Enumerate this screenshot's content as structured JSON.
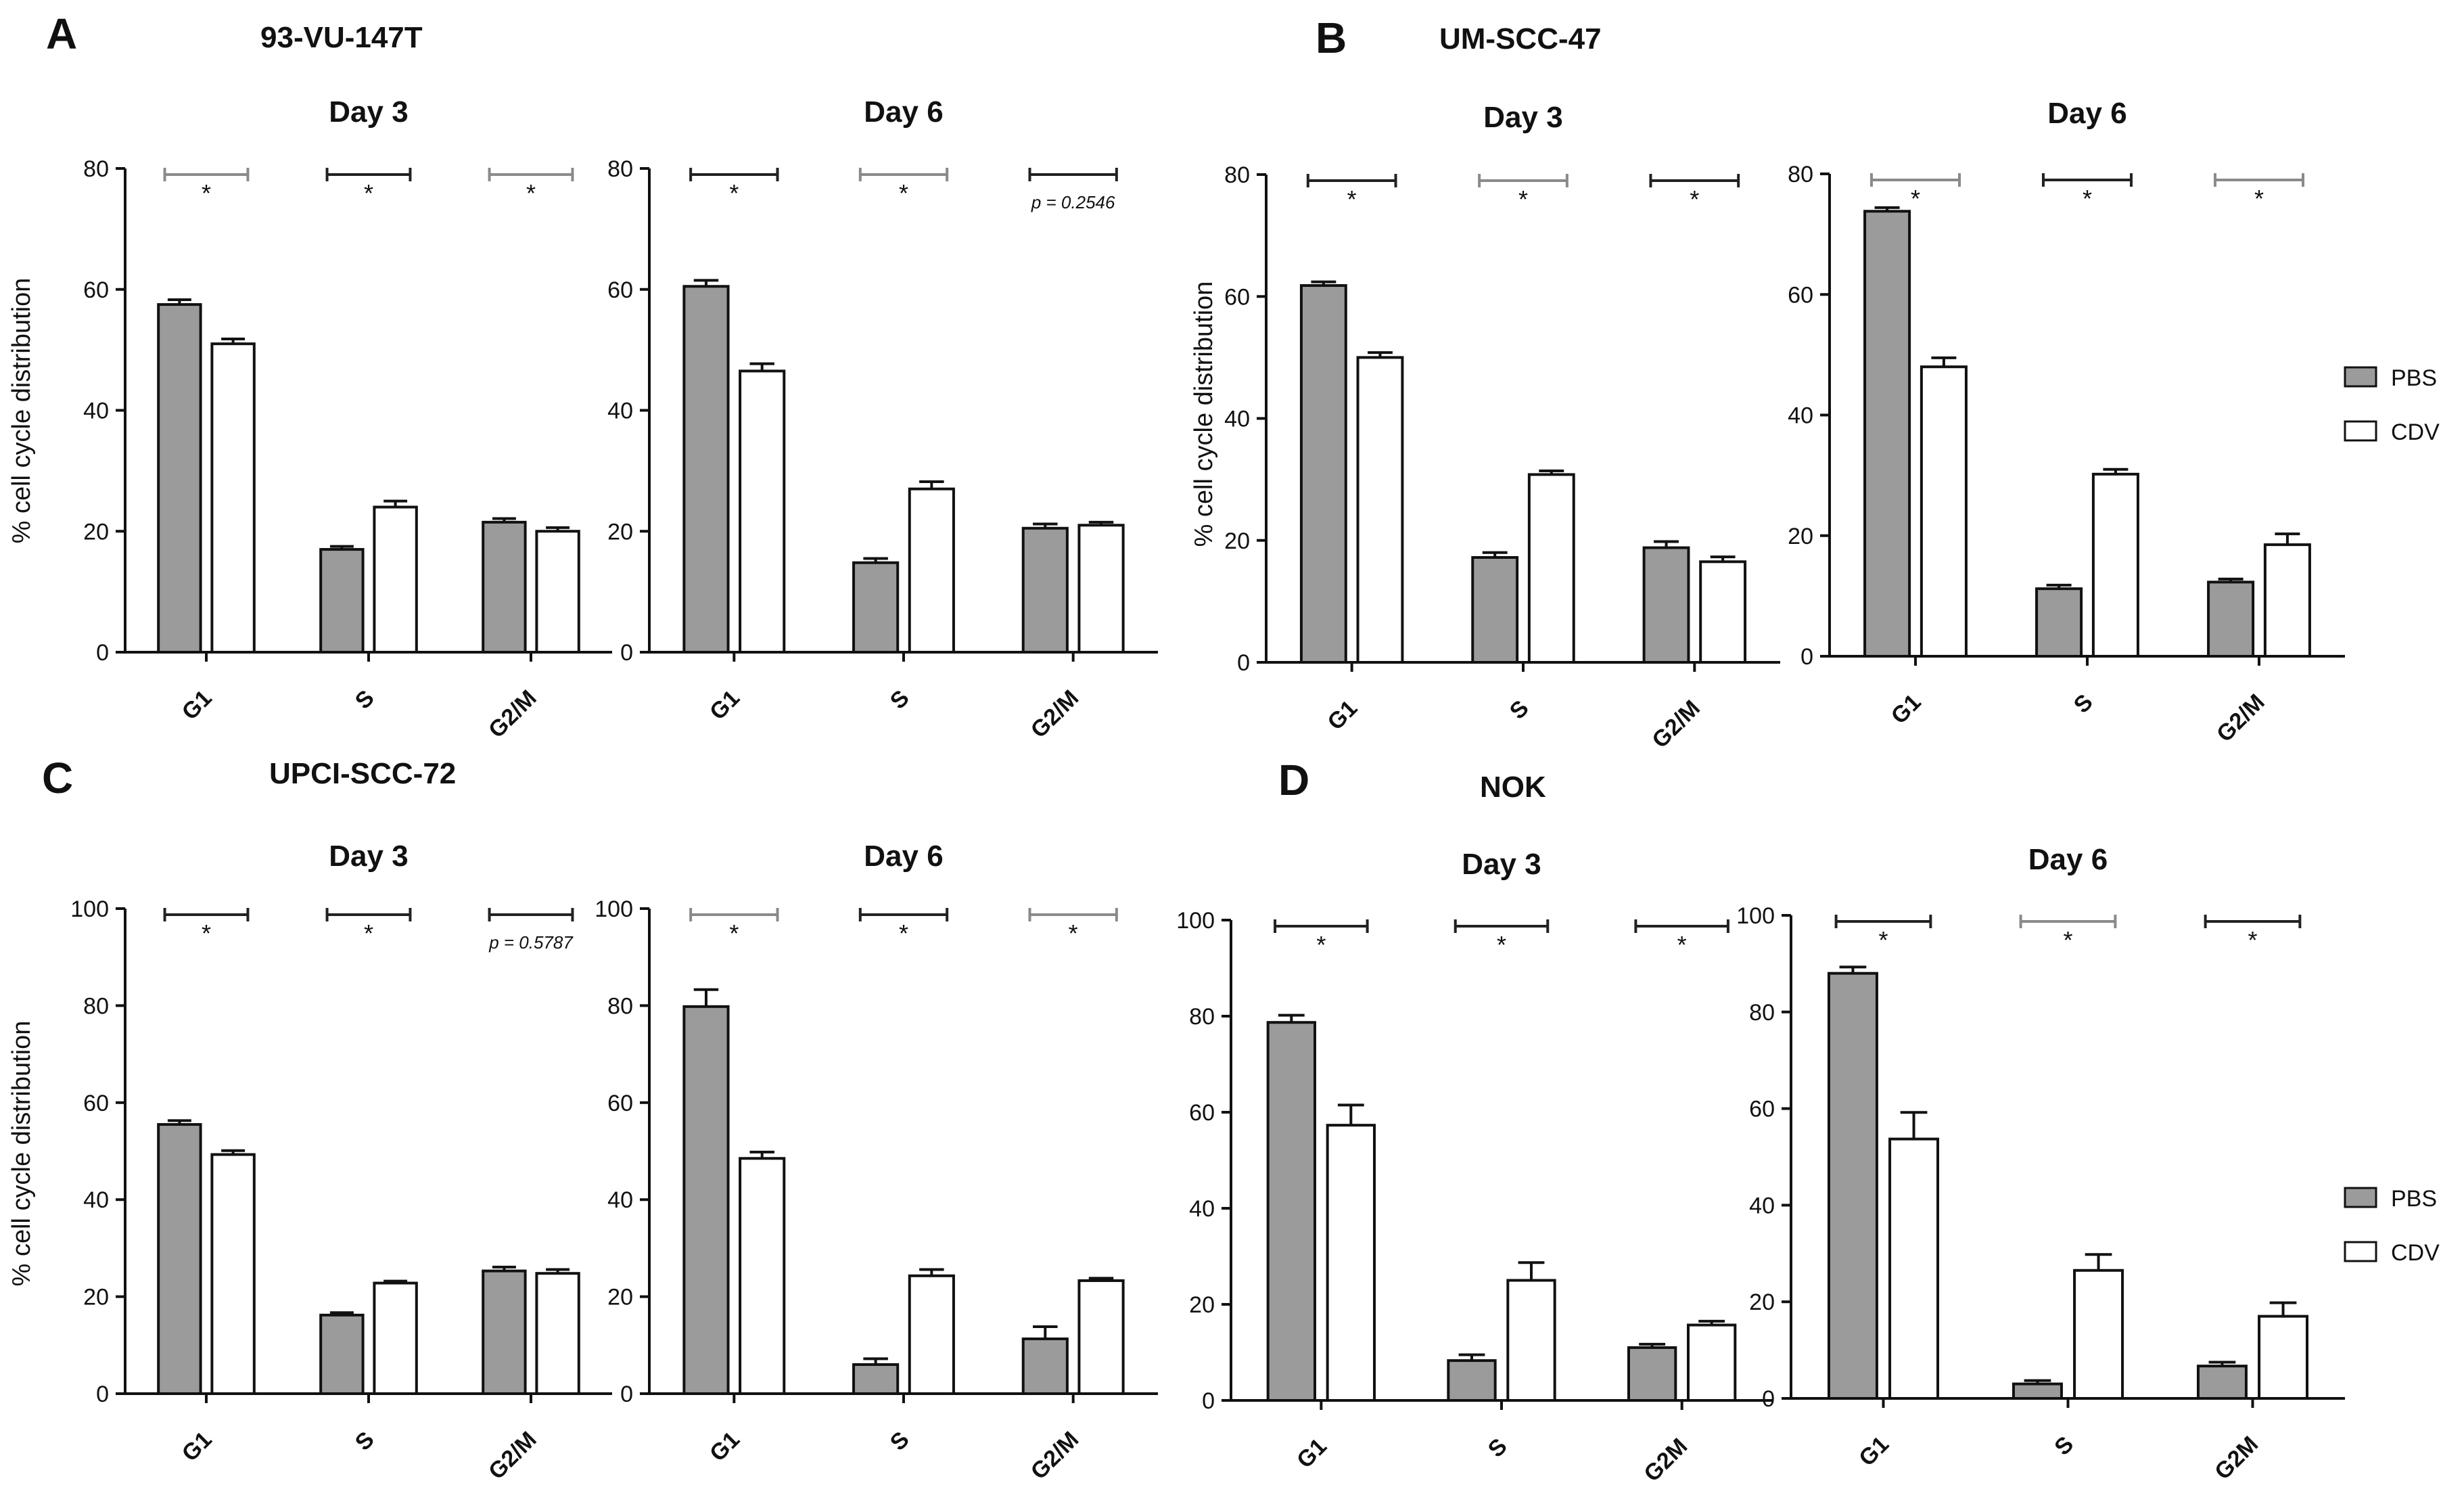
{
  "colors": {
    "pbs": "#9b9b9b",
    "cdv": "#ffffff",
    "stroke": "#111111",
    "sig_dark": "#222222",
    "sig_light": "#8a8a8a"
  },
  "legend": {
    "pbs": "PBS",
    "cdv": "CDV"
  },
  "panels": [
    {
      "letter": "A",
      "title": "93-VU-147T"
    },
    {
      "letter": "B",
      "title": "UM-SCC-47"
    },
    {
      "letter": "C",
      "title": "UPCI-SCC-72"
    },
    {
      "letter": "D",
      "title": "NOK"
    }
  ],
  "chart_data": [
    {
      "type": "bar",
      "panel": "A",
      "title": "Day 3",
      "ylabel": "% cell cycle distribution",
      "ylim": [
        0,
        80
      ],
      "yticks": [
        0,
        20,
        40,
        60,
        80
      ],
      "categories": [
        "G1",
        "S",
        "G2/M"
      ],
      "series": [
        {
          "name": "PBS",
          "values": [
            57.5,
            17,
            21.5
          ],
          "errors": [
            0.8,
            0.5,
            0.6
          ]
        },
        {
          "name": "CDV",
          "values": [
            51,
            24,
            20
          ],
          "errors": [
            0.8,
            1.0,
            0.6
          ]
        }
      ],
      "significance": [
        "*",
        "*",
        "*"
      ],
      "sig_shade": [
        "light",
        "dark",
        "light"
      ]
    },
    {
      "type": "bar",
      "panel": "A",
      "title": "Day 6",
      "ylabel": "",
      "ylim": [
        0,
        80
      ],
      "yticks": [
        0,
        20,
        40,
        60,
        80
      ],
      "categories": [
        "G1",
        "S",
        "G2/M"
      ],
      "series": [
        {
          "name": "PBS",
          "values": [
            60.5,
            14.8,
            20.5
          ],
          "errors": [
            1.0,
            0.7,
            0.7
          ]
        },
        {
          "name": "CDV",
          "values": [
            46.5,
            27,
            21
          ],
          "errors": [
            1.2,
            1.2,
            0.5
          ]
        }
      ],
      "significance": [
        "*",
        "*",
        "p = 0.2546"
      ],
      "sig_shade": [
        "dark",
        "light",
        "dark"
      ]
    },
    {
      "type": "bar",
      "panel": "B",
      "title": "Day 3",
      "ylabel": "% cell cycle distribution",
      "ylim": [
        0,
        80
      ],
      "yticks": [
        0,
        20,
        40,
        60,
        80
      ],
      "categories": [
        "G1",
        "S",
        "G2/M"
      ],
      "series": [
        {
          "name": "PBS",
          "values": [
            61.8,
            17.2,
            18.8
          ],
          "errors": [
            0.6,
            0.8,
            1.0
          ]
        },
        {
          "name": "CDV",
          "values": [
            50,
            30.8,
            16.5
          ],
          "errors": [
            0.8,
            0.6,
            0.8
          ]
        }
      ],
      "significance": [
        "*",
        "*",
        "*"
      ],
      "sig_shade": [
        "dark",
        "light",
        "dark"
      ]
    },
    {
      "type": "bar",
      "panel": "B",
      "title": "Day 6",
      "ylabel": "",
      "ylim": [
        0,
        80
      ],
      "yticks": [
        0,
        20,
        40,
        60,
        80
      ],
      "categories": [
        "G1",
        "S",
        "G2/M"
      ],
      "series": [
        {
          "name": "PBS",
          "values": [
            73.8,
            11.2,
            12.3
          ],
          "errors": [
            0.6,
            0.6,
            0.5
          ]
        },
        {
          "name": "CDV",
          "values": [
            48,
            30.2,
            18.5
          ],
          "errors": [
            1.5,
            0.8,
            1.8
          ]
        }
      ],
      "significance": [
        "*",
        "*",
        "*"
      ],
      "sig_shade": [
        "light",
        "dark",
        "light"
      ]
    },
    {
      "type": "bar",
      "panel": "C",
      "title": "Day 3",
      "ylabel": "% cell cycle distribution",
      "ylim": [
        0,
        100
      ],
      "yticks": [
        0,
        20,
        40,
        60,
        80,
        100
      ],
      "categories": [
        "G1",
        "S",
        "G2/M"
      ],
      "series": [
        {
          "name": "PBS",
          "values": [
            55.5,
            16.2,
            25.3
          ],
          "errors": [
            0.8,
            0.5,
            0.8
          ]
        },
        {
          "name": "CDV",
          "values": [
            49.3,
            22.8,
            24.8
          ],
          "errors": [
            0.8,
            0.4,
            0.8
          ]
        }
      ],
      "significance": [
        "*",
        "*",
        "p = 0.5787"
      ],
      "sig_shade": [
        "dark",
        "dark",
        "dark"
      ]
    },
    {
      "type": "bar",
      "panel": "C",
      "title": "Day 6",
      "ylabel": "",
      "ylim": [
        0,
        100
      ],
      "yticks": [
        0,
        20,
        40,
        60,
        80,
        100
      ],
      "categories": [
        "G1",
        "S",
        "G2/M"
      ],
      "series": [
        {
          "name": "PBS",
          "values": [
            79.8,
            6,
            11.3
          ],
          "errors": [
            3.5,
            1.2,
            2.5
          ]
        },
        {
          "name": "CDV",
          "values": [
            48.5,
            24.3,
            23.3
          ],
          "errors": [
            1.3,
            1.3,
            0.5
          ]
        }
      ],
      "significance": [
        "*",
        "*",
        "*"
      ],
      "sig_shade": [
        "light",
        "dark",
        "light"
      ]
    },
    {
      "type": "bar",
      "panel": "D",
      "title": "Day 3",
      "ylabel": "",
      "ylim": [
        0,
        100
      ],
      "yticks": [
        0,
        20,
        40,
        60,
        80,
        100
      ],
      "categories": [
        "G1",
        "S",
        "G2M"
      ],
      "series": [
        {
          "name": "PBS",
          "values": [
            78.7,
            8.3,
            11
          ],
          "errors": [
            1.5,
            1.2,
            0.7
          ]
        },
        {
          "name": "CDV",
          "values": [
            57.3,
            25,
            15.7
          ],
          "errors": [
            4.2,
            3.7,
            0.8
          ]
        }
      ],
      "significance": [
        "*",
        "*",
        "*"
      ],
      "sig_shade": [
        "dark",
        "dark",
        "dark"
      ]
    },
    {
      "type": "bar",
      "panel": "D",
      "title": "Day 6",
      "ylabel": "",
      "ylim": [
        0,
        100
      ],
      "yticks": [
        0,
        20,
        40,
        60,
        80,
        100
      ],
      "categories": [
        "G1",
        "S",
        "G2M"
      ],
      "series": [
        {
          "name": "PBS",
          "values": [
            88,
            3,
            6.7
          ],
          "errors": [
            1.3,
            0.7,
            0.8
          ]
        },
        {
          "name": "CDV",
          "values": [
            53.7,
            26.5,
            17
          ],
          "errors": [
            5.5,
            3.3,
            2.8
          ]
        }
      ],
      "significance": [
        "*",
        "*",
        "*"
      ],
      "sig_shade": [
        "dark",
        "light",
        "dark"
      ]
    }
  ]
}
